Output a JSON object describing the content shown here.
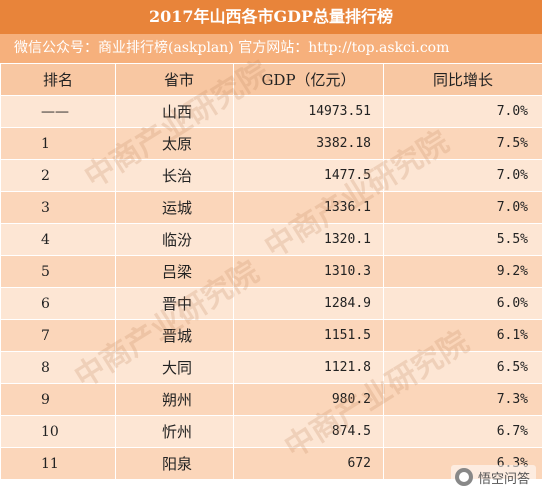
{
  "header": {
    "title": "2017年山西各市GDP总量排行榜",
    "source": "微信公众号：商业排行榜(askplan)   官方网站：http://top.askci.com"
  },
  "table": {
    "columns": [
      "排名",
      "省市",
      "GDP（亿元）",
      "同比增长"
    ],
    "rows": [
      {
        "rank": "——",
        "city": "山西",
        "gdp": "14973.51",
        "growth": "7.0%"
      },
      {
        "rank": "1",
        "city": "太原",
        "gdp": "3382.18",
        "growth": "7.5%"
      },
      {
        "rank": "2",
        "city": "长治",
        "gdp": "1477.5",
        "growth": "7.0%"
      },
      {
        "rank": "3",
        "city": "运城",
        "gdp": "1336.1",
        "growth": "7.0%"
      },
      {
        "rank": "4",
        "city": "临汾",
        "gdp": "1320.1",
        "growth": "5.5%"
      },
      {
        "rank": "5",
        "city": "吕梁",
        "gdp": "1310.3",
        "growth": "9.2%"
      },
      {
        "rank": "6",
        "city": "晋中",
        "gdp": "1284.9",
        "growth": "6.0%"
      },
      {
        "rank": "7",
        "city": "晋城",
        "gdp": "1151.5",
        "growth": "6.1%"
      },
      {
        "rank": "8",
        "city": "大同",
        "gdp": "1121.8",
        "growth": "6.5%"
      },
      {
        "rank": "9",
        "city": "朔州",
        "gdp": "980.2",
        "growth": "7.3%"
      },
      {
        "rank": "10",
        "city": "忻州",
        "gdp": "874.5",
        "growth": "6.7%"
      },
      {
        "rank": "11",
        "city": "阳泉",
        "gdp": "672",
        "growth": "6.3%"
      }
    ]
  },
  "watermark": {
    "text": "中商产业研究院"
  },
  "badge": {
    "text": "悟空问答"
  },
  "colors": {
    "title_bg": "#e8843a",
    "source_bg": "#f6b07c",
    "header_bg": "#f8c7a2",
    "row_light": "#fde6d4",
    "row_dark": "#fbd6ba"
  }
}
